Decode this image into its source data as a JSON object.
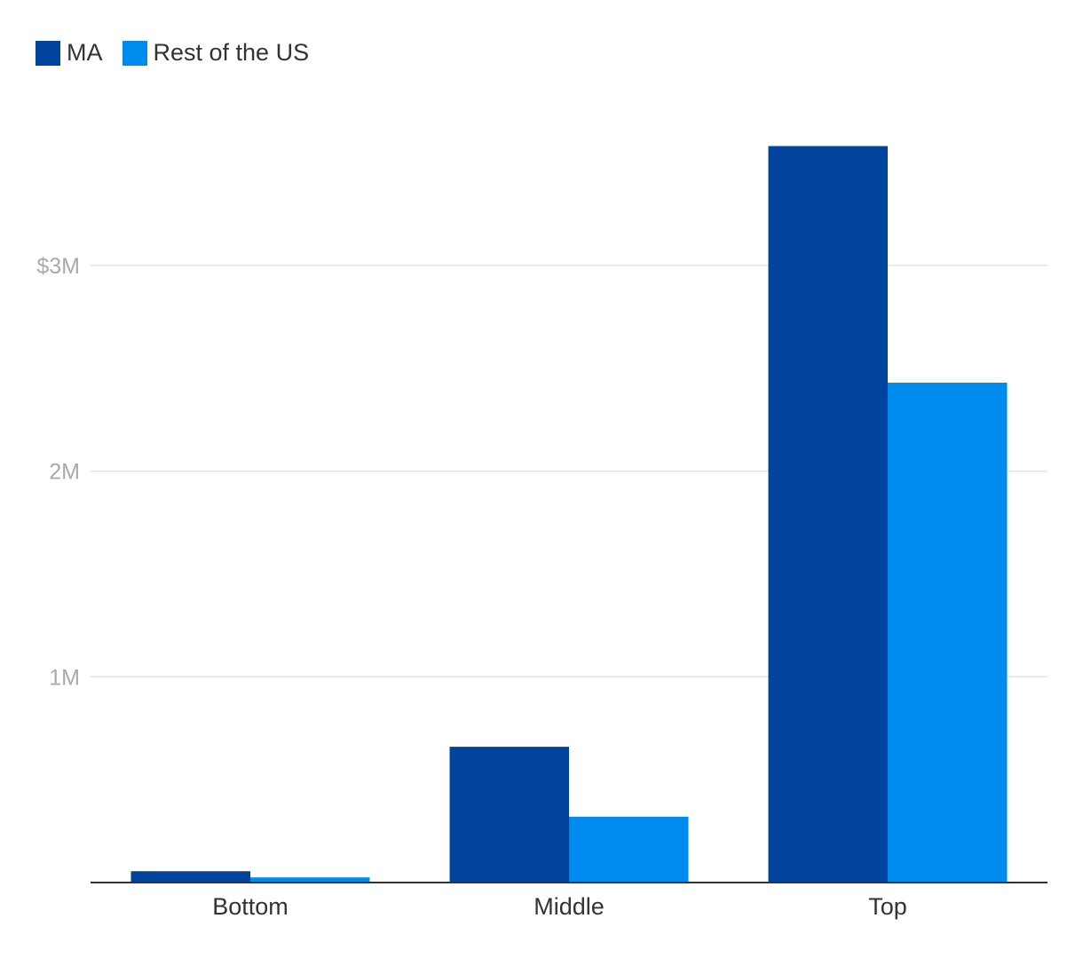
{
  "chart_data": {
    "type": "bar",
    "categories": [
      "Bottom",
      "Middle",
      "Top"
    ],
    "series": [
      {
        "name": "MA",
        "color": "#00449e",
        "values": [
          0.055,
          0.66,
          3.58
        ]
      },
      {
        "name": "Rest of the US",
        "color": "#008cee",
        "values": [
          0.025,
          0.32,
          2.43
        ]
      }
    ],
    "y_ticks": [
      {
        "value": 1,
        "label": "1M"
      },
      {
        "value": 2,
        "label": "2M"
      },
      {
        "value": 3,
        "label": "$3M"
      }
    ],
    "ylim": [
      0,
      3.8
    ],
    "grid": true,
    "legend_position": "top-left",
    "title": "",
    "xlabel": "",
    "ylabel": ""
  }
}
